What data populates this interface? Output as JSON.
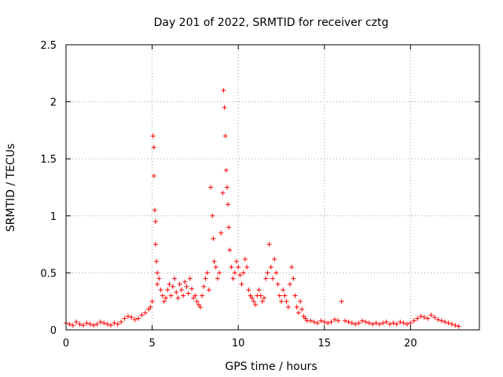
{
  "chart_data": {
    "type": "scatter",
    "title": "Day 201 of 2022, SRMTID for receiver cztg",
    "xlabel": "GPS time / hours",
    "ylabel": "SRMTID / TECUs",
    "xlim": [
      0,
      24
    ],
    "ylim": [
      0,
      2.5
    ],
    "xticks": [
      0,
      5,
      10,
      15,
      20
    ],
    "xtick_labels": [
      "0",
      "5",
      "10",
      "15",
      "20"
    ],
    "yticks": [
      0,
      0.5,
      1,
      1.5,
      2,
      2.5
    ],
    "ytick_labels": [
      "0",
      "0.5",
      "1",
      "1.5",
      "2",
      "2.5"
    ],
    "grid": true,
    "marker": "+",
    "color": "#ff0000",
    "series": [
      {
        "name": "SRMTID",
        "x": [
          0.0,
          0.2,
          0.4,
          0.6,
          0.8,
          1.0,
          1.2,
          1.4,
          1.6,
          1.8,
          2.0,
          2.2,
          2.4,
          2.6,
          2.8,
          3.0,
          3.2,
          3.4,
          3.6,
          3.8,
          4.0,
          4.2,
          4.4,
          4.6,
          4.8,
          4.9,
          5.0,
          5.05,
          5.1,
          5.1,
          5.15,
          5.2,
          5.2,
          5.25,
          5.3,
          5.3,
          5.4,
          5.5,
          5.6,
          5.7,
          5.8,
          5.9,
          6.0,
          6.1,
          6.2,
          6.3,
          6.4,
          6.5,
          6.6,
          6.7,
          6.8,
          6.9,
          7.0,
          7.1,
          7.2,
          7.3,
          7.4,
          7.5,
          7.6,
          7.7,
          7.8,
          7.9,
          8.0,
          8.1,
          8.2,
          8.3,
          8.4,
          8.5,
          8.55,
          8.6,
          8.7,
          8.8,
          8.9,
          9.0,
          9.1,
          9.15,
          9.2,
          9.25,
          9.3,
          9.35,
          9.4,
          9.45,
          9.5,
          9.6,
          9.7,
          9.8,
          9.9,
          10.0,
          10.1,
          10.2,
          10.3,
          10.4,
          10.5,
          10.6,
          10.7,
          10.8,
          10.9,
          11.0,
          11.1,
          11.2,
          11.3,
          11.4,
          11.5,
          11.6,
          11.7,
          11.8,
          11.9,
          12.0,
          12.1,
          12.2,
          12.3,
          12.4,
          12.5,
          12.6,
          12.7,
          12.8,
          12.9,
          13.0,
          13.1,
          13.2,
          13.3,
          13.4,
          13.5,
          13.6,
          13.7,
          13.8,
          13.9,
          14.0,
          14.2,
          14.4,
          14.6,
          14.8,
          15.0,
          15.2,
          15.4,
          15.6,
          15.8,
          16.0,
          16.2,
          16.4,
          16.6,
          16.8,
          17.0,
          17.2,
          17.4,
          17.6,
          17.8,
          18.0,
          18.2,
          18.4,
          18.6,
          18.8,
          19.0,
          19.2,
          19.4,
          19.6,
          19.8,
          20.0,
          20.2,
          20.4,
          20.6,
          20.8,
          21.0,
          21.2,
          21.4,
          21.6,
          21.8,
          22.0,
          22.2,
          22.4,
          22.6,
          22.8
        ],
        "y": [
          0.06,
          0.05,
          0.04,
          0.07,
          0.05,
          0.04,
          0.06,
          0.05,
          0.04,
          0.05,
          0.07,
          0.06,
          0.05,
          0.04,
          0.06,
          0.05,
          0.07,
          0.1,
          0.12,
          0.11,
          0.09,
          0.1,
          0.13,
          0.15,
          0.18,
          0.2,
          0.25,
          1.7,
          1.6,
          1.35,
          1.05,
          0.95,
          0.75,
          0.6,
          0.5,
          0.4,
          0.45,
          0.35,
          0.3,
          0.25,
          0.28,
          0.35,
          0.4,
          0.3,
          0.38,
          0.45,
          0.33,
          0.28,
          0.4,
          0.35,
          0.3,
          0.42,
          0.38,
          0.32,
          0.45,
          0.36,
          0.28,
          0.3,
          0.25,
          0.22,
          0.2,
          0.3,
          0.38,
          0.45,
          0.5,
          0.35,
          1.25,
          1.0,
          0.8,
          0.6,
          0.55,
          0.45,
          0.5,
          0.85,
          1.2,
          2.1,
          1.95,
          1.7,
          1.4,
          1.25,
          1.1,
          0.9,
          0.7,
          0.55,
          0.45,
          0.5,
          0.6,
          0.55,
          0.48,
          0.4,
          0.5,
          0.62,
          0.55,
          0.35,
          0.3,
          0.28,
          0.25,
          0.22,
          0.3,
          0.35,
          0.3,
          0.25,
          0.28,
          0.45,
          0.5,
          0.75,
          0.55,
          0.45,
          0.62,
          0.5,
          0.4,
          0.3,
          0.25,
          0.35,
          0.3,
          0.25,
          0.2,
          0.4,
          0.55,
          0.45,
          0.3,
          0.2,
          0.15,
          0.25,
          0.18,
          0.12,
          0.1,
          0.08,
          0.08,
          0.07,
          0.06,
          0.08,
          0.07,
          0.06,
          0.07,
          0.09,
          0.08,
          0.25,
          0.08,
          0.07,
          0.06,
          0.05,
          0.06,
          0.08,
          0.07,
          0.06,
          0.05,
          0.06,
          0.05,
          0.06,
          0.07,
          0.05,
          0.06,
          0.05,
          0.07,
          0.06,
          0.05,
          0.06,
          0.08,
          0.1,
          0.12,
          0.11,
          0.1,
          0.13,
          0.11,
          0.09,
          0.08,
          0.07,
          0.06,
          0.05,
          0.04,
          0.03
        ]
      }
    ]
  }
}
